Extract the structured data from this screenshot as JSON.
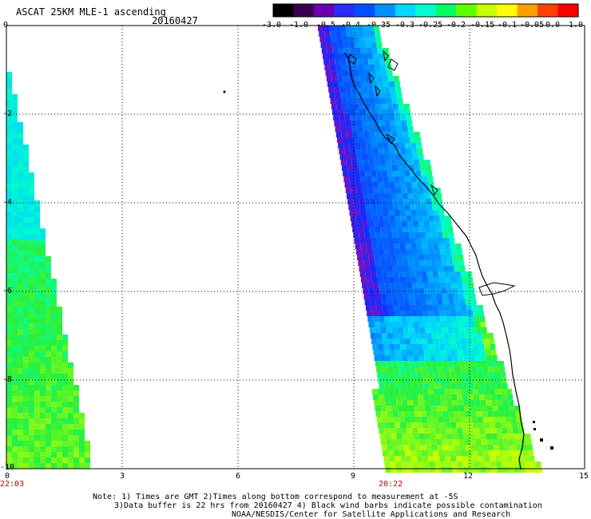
{
  "title": "ASCAT 25KM MLE-1 ascending",
  "date": "20160427",
  "colorbar": {
    "labels": [
      "-3.0",
      "-1.0",
      "-0.5",
      "-0.4",
      "-0.35",
      "-0.3",
      "-0.25",
      "-0.2",
      "-0.15",
      "-0.1",
      "-0.05",
      "0.0",
      "1.0"
    ],
    "colors": [
      "#000000",
      "#3a0050",
      "#6a00b0",
      "#2b2bff",
      "#0050ff",
      "#0090ff",
      "#00d8ff",
      "#00ffd0",
      "#00ff60",
      "#60ff00",
      "#c8ff00",
      "#ffff00",
      "#ffa000",
      "#ff4000",
      "#ff0000"
    ]
  },
  "axes": {
    "x_ticks": [
      "0",
      "3",
      "6",
      "9",
      "12",
      "15"
    ],
    "y_ticks": [
      "0",
      "-2",
      "-4",
      "-6",
      "-8",
      "-10"
    ],
    "time_labels": [
      "22:03",
      "20:22"
    ]
  },
  "notes": [
    "Note: 1) Times are GMT 2)Times along bottom correspond to measurement at -5S",
    "3)Data buffer is 22 hrs from 20160427 4) Black wind barbs indicate possible contamination",
    "NOAA/NESDIS/Center for Satellite Applications and Research"
  ]
}
